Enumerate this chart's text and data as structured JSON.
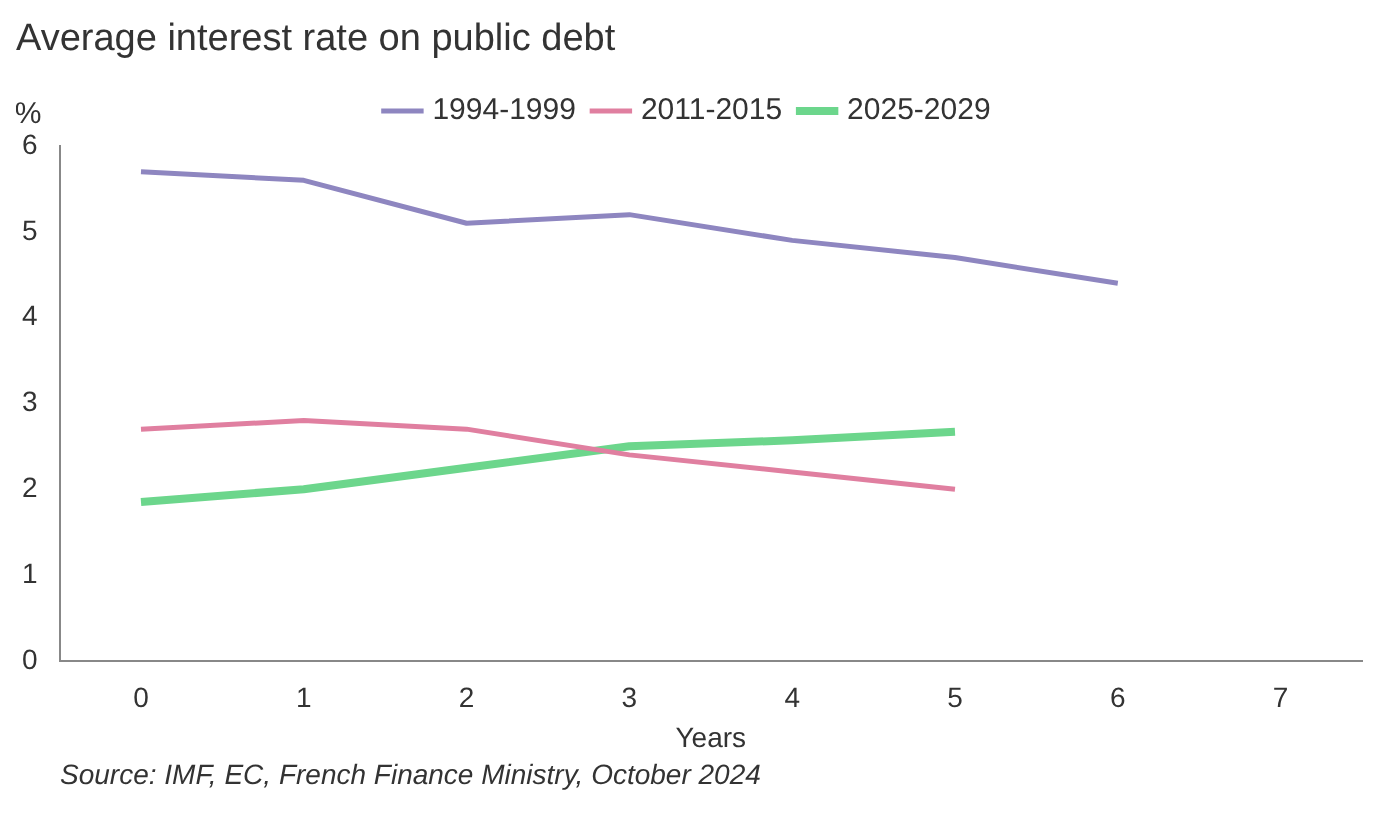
{
  "chart_data": {
    "type": "line",
    "title": "Average interest rate on public debt",
    "xlabel": "Years",
    "ylabel": "%",
    "annotations": [
      "Source: IMF, EC, French Finance Ministry, October 2024"
    ],
    "series": [
      {
        "name": "1994-1999",
        "color": "#8e86c0",
        "x": [
          0,
          1,
          2,
          3,
          4,
          5,
          6
        ],
        "values": [
          5.7,
          5.6,
          5.1,
          5.2,
          4.9,
          4.7,
          4.4
        ]
      },
      {
        "name": "2011-2015",
        "color": "#e07fa0",
        "x": [
          0,
          1,
          2,
          3,
          4,
          5
        ],
        "values": [
          2.7,
          2.8,
          2.7,
          2.4,
          2.2,
          2.0
        ]
      },
      {
        "name": "2025-2029",
        "color": "#6cd68c",
        "x": [
          0,
          1,
          2,
          3,
          4,
          5
        ],
        "values": [
          1.85,
          2.0,
          2.25,
          2.5,
          2.57,
          2.67
        ]
      }
    ],
    "xlim": [
      -0.5,
      7.5
    ],
    "xticks": [
      0,
      1,
      2,
      3,
      4,
      5,
      6,
      7
    ],
    "ylim": [
      0,
      6
    ],
    "yticks": [
      0,
      1,
      2,
      3,
      4,
      5,
      6
    ],
    "grid": false,
    "legend": "top",
    "marker": "none",
    "line_style": "solid"
  }
}
